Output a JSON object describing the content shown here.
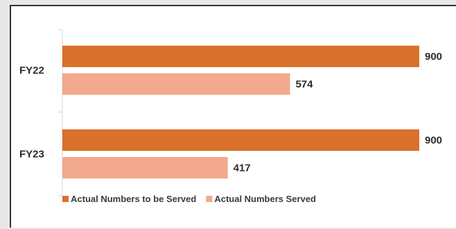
{
  "chart_data": {
    "type": "bar",
    "orientation": "horizontal",
    "categories": [
      "FY22",
      "FY23"
    ],
    "series": [
      {
        "name": "Actual Numbers to be Served",
        "values": [
          900,
          900
        ],
        "color": "#d9702b"
      },
      {
        "name": "Actual Numbers Served",
        "values": [
          574,
          417
        ],
        "color": "#f2a98d"
      }
    ],
    "xlim": [
      0,
      900
    ],
    "grid": false,
    "legend_position": "bottom-left",
    "data_labels": true
  }
}
